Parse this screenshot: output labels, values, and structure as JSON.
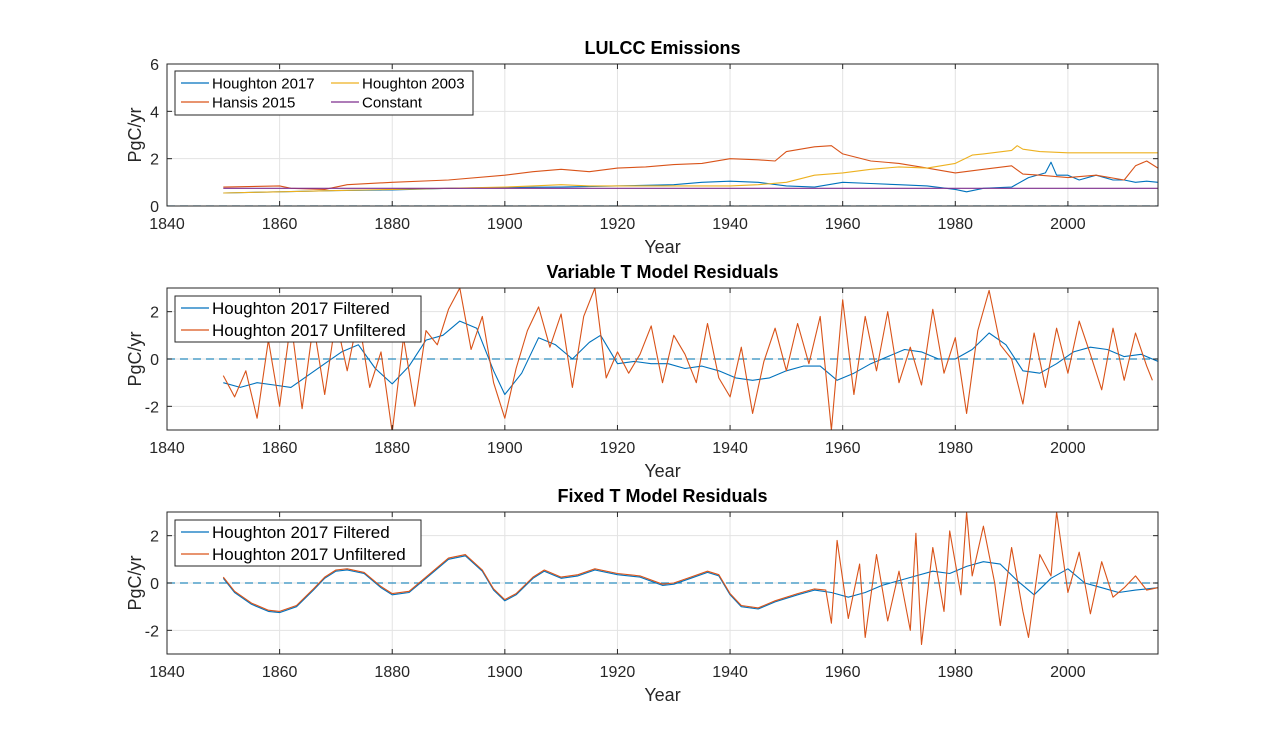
{
  "chart_data": [
    {
      "type": "line",
      "title": "LULCC Emissions",
      "xlabel": "Year",
      "ylabel": "PgC/yr",
      "xlim": [
        1840,
        2016
      ],
      "ylim": [
        0,
        6
      ],
      "xticks": [
        1840,
        1860,
        1880,
        1900,
        1920,
        1940,
        1960,
        1980,
        2000
      ],
      "yticks": [
        0,
        2,
        4,
        6
      ],
      "grid": true,
      "legend": "top-left",
      "zero_line": true,
      "series": [
        {
          "name": "Houghton 2017",
          "color": "#0072BD",
          "x": [
            1850,
            1860,
            1870,
            1880,
            1890,
            1900,
            1910,
            1920,
            1930,
            1935,
            1940,
            1945,
            1950,
            1955,
            1960,
            1965,
            1970,
            1975,
            1980,
            1982,
            1985,
            1990,
            1993,
            1996,
            1997,
            1998,
            2000,
            2002,
            2005,
            2008,
            2010,
            2012,
            2014,
            2016
          ],
          "y": [
            0.55,
            0.6,
            0.65,
            0.68,
            0.75,
            0.78,
            0.8,
            0.85,
            0.9,
            1.0,
            1.05,
            1.0,
            0.85,
            0.8,
            1.0,
            0.95,
            0.9,
            0.85,
            0.7,
            0.6,
            0.75,
            0.8,
            1.2,
            1.4,
            1.85,
            1.3,
            1.3,
            1.1,
            1.3,
            1.1,
            1.1,
            1.0,
            1.05,
            1.0
          ]
        },
        {
          "name": "Hansis 2015",
          "color": "#D95319",
          "x": [
            1850,
            1860,
            1862,
            1868,
            1872,
            1880,
            1890,
            1900,
            1905,
            1910,
            1915,
            1920,
            1925,
            1930,
            1935,
            1940,
            1945,
            1948,
            1950,
            1955,
            1958,
            1960,
            1965,
            1970,
            1975,
            1980,
            1985,
            1990,
            1992,
            1995,
            2000,
            2005,
            2010,
            2012,
            2014,
            2016
          ],
          "y": [
            0.8,
            0.85,
            0.75,
            0.7,
            0.9,
            1.0,
            1.1,
            1.3,
            1.45,
            1.55,
            1.45,
            1.6,
            1.65,
            1.75,
            1.8,
            2.0,
            1.95,
            1.9,
            2.3,
            2.5,
            2.55,
            2.2,
            1.9,
            1.8,
            1.6,
            1.4,
            1.55,
            1.7,
            1.35,
            1.3,
            1.2,
            1.3,
            1.1,
            1.7,
            1.9,
            1.6
          ]
        },
        {
          "name": "Houghton 2003",
          "color": "#EDB120",
          "x": [
            1850,
            1860,
            1870,
            1880,
            1890,
            1900,
            1905,
            1910,
            1915,
            1920,
            1925,
            1930,
            1940,
            1945,
            1950,
            1955,
            1960,
            1965,
            1970,
            1975,
            1980,
            1983,
            1985,
            1990,
            1991,
            1992,
            1995,
            2000,
            2016
          ],
          "y": [
            0.55,
            0.6,
            0.65,
            0.7,
            0.75,
            0.8,
            0.85,
            0.9,
            0.85,
            0.85,
            0.85,
            0.85,
            0.85,
            0.9,
            1.0,
            1.3,
            1.4,
            1.55,
            1.65,
            1.6,
            1.8,
            2.15,
            2.2,
            2.35,
            2.55,
            2.4,
            2.3,
            2.25,
            2.25
          ]
        },
        {
          "name": "Constant",
          "color": "#7E2F8E",
          "x": [
            1850,
            2016
          ],
          "y": [
            0.75,
            0.75
          ]
        }
      ]
    },
    {
      "type": "line",
      "title": "Variable T Model Residuals",
      "xlabel": "Year",
      "ylabel": "PgC/yr",
      "xlim": [
        1840,
        2016
      ],
      "ylim": [
        -3,
        3
      ],
      "xticks": [
        1840,
        1860,
        1880,
        1900,
        1920,
        1940,
        1960,
        1980,
        2000
      ],
      "yticks": [
        -2,
        0,
        2
      ],
      "grid": true,
      "legend": "top-left",
      "zero_line": true,
      "series": [
        {
          "name": "Houghton 2017 Filtered",
          "color": "#0072BD",
          "x": [
            1850,
            1853,
            1856,
            1859,
            1862,
            1865,
            1868,
            1871,
            1874,
            1877,
            1880,
            1883,
            1886,
            1889,
            1892,
            1895,
            1898,
            1900,
            1903,
            1906,
            1909,
            1912,
            1915,
            1917,
            1920,
            1923,
            1926,
            1929,
            1932,
            1935,
            1938,
            1941,
            1944,
            1947,
            1950,
            1953,
            1956,
            1959,
            1962,
            1965,
            1968,
            1971,
            1974,
            1977,
            1980,
            1983,
            1986,
            1989,
            1992,
            1995,
            1998,
            2001,
            2004,
            2007,
            2010,
            2013,
            2016
          ],
          "y": [
            -1.0,
            -1.2,
            -1.0,
            -1.1,
            -1.2,
            -0.7,
            -0.2,
            0.3,
            0.6,
            -0.4,
            -1.05,
            -0.3,
            0.8,
            1.0,
            1.6,
            1.3,
            -0.5,
            -1.5,
            -0.6,
            0.9,
            0.6,
            0.0,
            0.7,
            1.0,
            -0.2,
            -0.1,
            -0.2,
            -0.2,
            -0.4,
            -0.3,
            -0.5,
            -0.8,
            -0.9,
            -0.8,
            -0.5,
            -0.3,
            -0.3,
            -0.9,
            -0.6,
            -0.2,
            0.1,
            0.4,
            0.3,
            0.0,
            0.0,
            0.4,
            1.1,
            0.6,
            -0.5,
            -0.6,
            -0.2,
            0.3,
            0.5,
            0.4,
            0.1,
            0.2,
            -0.1
          ]
        },
        {
          "name": "Houghton 2017 Unfiltered",
          "color": "#D95319",
          "x": [
            1850,
            1852,
            1854,
            1856,
            1858,
            1860,
            1862,
            1864,
            1866,
            1868,
            1870,
            1872,
            1874,
            1876,
            1878,
            1880,
            1882,
            1884,
            1886,
            1888,
            1890,
            1892,
            1894,
            1896,
            1898,
            1900,
            1902,
            1904,
            1906,
            1908,
            1910,
            1912,
            1914,
            1916,
            1918,
            1920,
            1922,
            1924,
            1926,
            1928,
            1930,
            1932,
            1934,
            1936,
            1938,
            1940,
            1942,
            1944,
            1946,
            1948,
            1950,
            1952,
            1954,
            1956,
            1957,
            1958,
            1960,
            1962,
            1964,
            1966,
            1968,
            1970,
            1972,
            1974,
            1976,
            1978,
            1980,
            1982,
            1984,
            1986,
            1988,
            1990,
            1992,
            1994,
            1996,
            1998,
            2000,
            2002,
            2004,
            2006,
            2008,
            2010,
            2012,
            2014,
            2015
          ],
          "y": [
            -0.7,
            -1.6,
            -0.5,
            -2.5,
            0.8,
            -2.0,
            1.6,
            -2.1,
            1.5,
            -1.5,
            1.7,
            -0.5,
            1.8,
            -1.2,
            0.3,
            -3.1,
            0.9,
            -2.0,
            1.2,
            0.6,
            2.1,
            3.0,
            0.4,
            1.8,
            -1.0,
            -2.5,
            -0.4,
            1.2,
            2.2,
            0.5,
            1.9,
            -1.2,
            1.8,
            3.0,
            -0.8,
            0.3,
            -0.6,
            0.2,
            1.4,
            -1.0,
            1.0,
            0.2,
            -1.0,
            1.5,
            -0.8,
            -1.6,
            0.5,
            -2.3,
            -0.1,
            1.3,
            -0.5,
            1.5,
            -0.2,
            1.8,
            -0.6,
            -3.0,
            2.5,
            -1.5,
            1.8,
            -0.5,
            2.0,
            -1.0,
            0.5,
            -1.1,
            2.1,
            -0.6,
            0.9,
            -2.3,
            1.2,
            2.9,
            0.6,
            0.0,
            -1.9,
            1.1,
            -1.2,
            1.3,
            -0.6,
            1.6,
            0.2,
            -1.3,
            1.3,
            -0.9,
            1.1,
            -0.3,
            -0.9
          ]
        }
      ]
    },
    {
      "type": "line",
      "title": "Fixed T Model Residuals",
      "xlabel": "Year",
      "ylabel": "PgC/yr",
      "xlim": [
        1840,
        2016
      ],
      "ylim": [
        -3,
        3
      ],
      "xticks": [
        1840,
        1860,
        1880,
        1900,
        1920,
        1940,
        1960,
        1980,
        2000
      ],
      "yticks": [
        -2,
        0,
        2
      ],
      "grid": true,
      "legend": "top-left",
      "zero_line": true,
      "series": [
        {
          "name": "Houghton 2017 Filtered",
          "color": "#0072BD",
          "x": [
            1850,
            1852,
            1855,
            1858,
            1860,
            1863,
            1866,
            1868,
            1870,
            1872,
            1875,
            1878,
            1880,
            1883,
            1886,
            1890,
            1893,
            1896,
            1898,
            1900,
            1902,
            1905,
            1907,
            1910,
            1913,
            1916,
            1920,
            1924,
            1928,
            1930,
            1933,
            1936,
            1938,
            1940,
            1942,
            1945,
            1948,
            1952,
            1955,
            1958,
            1961,
            1964,
            1967,
            1970,
            1973,
            1976,
            1979,
            1982,
            1985,
            1988,
            1991,
            1994,
            1997,
            2000,
            2003,
            2006,
            2009,
            2012,
            2016
          ],
          "y": [
            0.2,
            -0.4,
            -0.9,
            -1.2,
            -1.25,
            -1.0,
            -0.3,
            0.2,
            0.5,
            0.55,
            0.4,
            -0.2,
            -0.5,
            -0.4,
            0.2,
            1.0,
            1.15,
            0.5,
            -0.3,
            -0.75,
            -0.5,
            0.2,
            0.5,
            0.2,
            0.3,
            0.55,
            0.35,
            0.25,
            -0.1,
            -0.05,
            0.2,
            0.45,
            0.3,
            -0.5,
            -1.0,
            -1.1,
            -0.8,
            -0.5,
            -0.3,
            -0.4,
            -0.6,
            -0.4,
            -0.1,
            0.1,
            0.3,
            0.5,
            0.4,
            0.7,
            0.9,
            0.8,
            0.1,
            -0.5,
            0.2,
            0.6,
            0.0,
            -0.2,
            -0.4,
            -0.3,
            -0.2
          ]
        },
        {
          "name": "Houghton 2017 Unfiltered",
          "color": "#D95319",
          "x": [
            1850,
            1852,
            1855,
            1858,
            1860,
            1863,
            1866,
            1868,
            1870,
            1872,
            1875,
            1878,
            1880,
            1883,
            1886,
            1890,
            1893,
            1896,
            1898,
            1900,
            1902,
            1905,
            1907,
            1910,
            1913,
            1916,
            1920,
            1924,
            1928,
            1930,
            1933,
            1936,
            1938,
            1940,
            1942,
            1945,
            1948,
            1952,
            1955,
            1957,
            1958,
            1959,
            1961,
            1963,
            1964,
            1966,
            1968,
            1970,
            1972,
            1973,
            1974,
            1976,
            1978,
            1979,
            1981,
            1982,
            1983,
            1985,
            1987,
            1988,
            1990,
            1992,
            1993,
            1995,
            1997,
            1998,
            2000,
            2002,
            2004,
            2006,
            2008,
            2010,
            2012,
            2014,
            2016
          ],
          "y": [
            0.25,
            -0.35,
            -0.85,
            -1.15,
            -1.2,
            -0.95,
            -0.25,
            0.25,
            0.55,
            0.6,
            0.45,
            -0.15,
            -0.45,
            -0.35,
            0.25,
            1.05,
            1.2,
            0.55,
            -0.25,
            -0.7,
            -0.45,
            0.25,
            0.55,
            0.25,
            0.35,
            0.6,
            0.4,
            0.3,
            -0.05,
            0.0,
            0.25,
            0.5,
            0.35,
            -0.45,
            -0.95,
            -1.05,
            -0.75,
            -0.45,
            -0.25,
            -0.3,
            -1.7,
            1.8,
            -1.5,
            0.8,
            -2.3,
            1.2,
            -1.6,
            0.5,
            -2.0,
            2.1,
            -2.6,
            1.5,
            -1.2,
            2.2,
            -0.5,
            3.0,
            0.3,
            2.4,
            0.0,
            -1.8,
            1.5,
            -1.2,
            -2.3,
            1.2,
            0.3,
            3.0,
            -0.4,
            1.3,
            -1.3,
            0.9,
            -0.6,
            -0.2,
            0.3,
            -0.3,
            -0.2
          ]
        }
      ]
    }
  ]
}
